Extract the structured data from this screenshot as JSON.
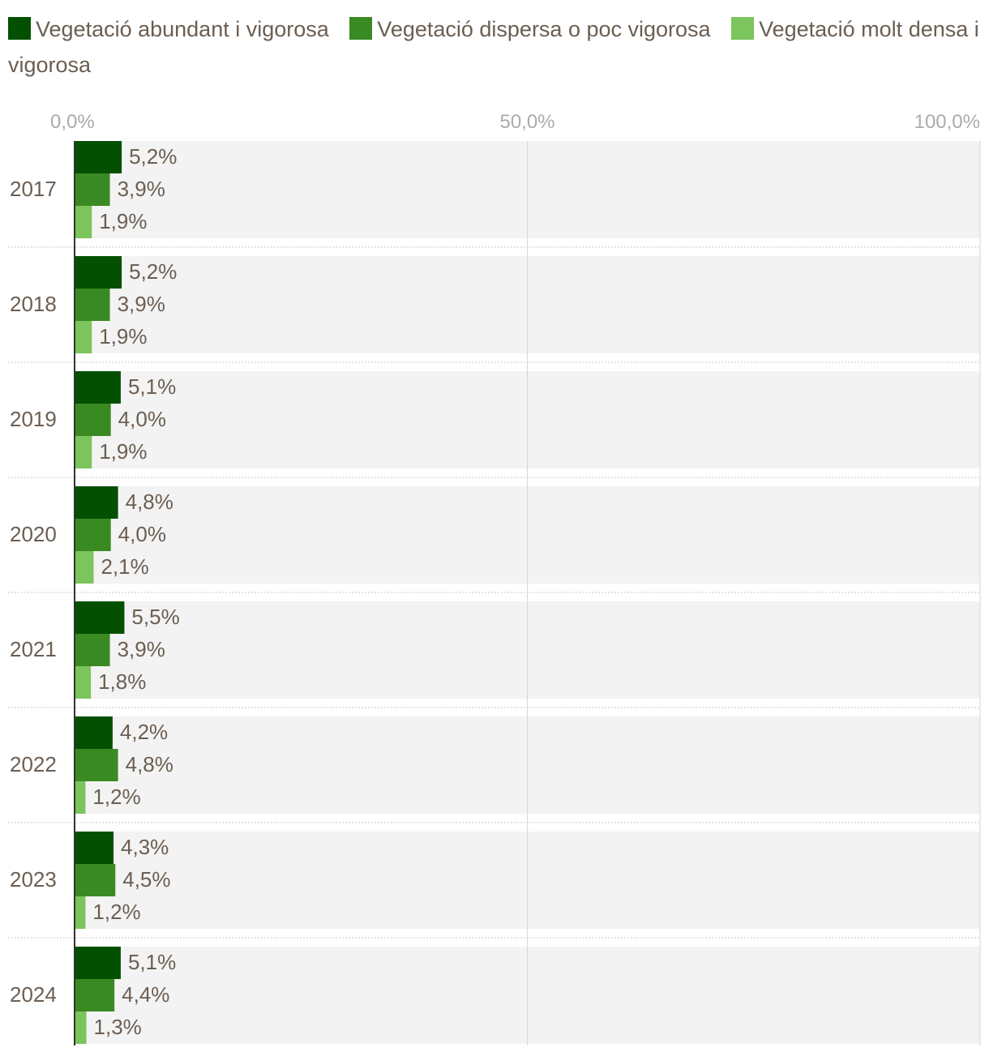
{
  "chart_data": {
    "type": "bar",
    "orientation": "horizontal",
    "categories": [
      "2017",
      "2018",
      "2019",
      "2020",
      "2021",
      "2022",
      "2023",
      "2024"
    ],
    "series": [
      {
        "name": "Vegetació abundant i vigorosa",
        "color": "#025000",
        "values": [
          5.2,
          5.2,
          5.1,
          4.8,
          5.5,
          4.2,
          4.3,
          5.1
        ],
        "labels": [
          "5,2%",
          "5,2%",
          "5,1%",
          "4,8%",
          "5,5%",
          "4,2%",
          "4,3%",
          "5,1%"
        ]
      },
      {
        "name": "Vegetació dispersa o poc vigorosa",
        "color": "#3a8a23",
        "values": [
          3.9,
          3.9,
          4.0,
          4.0,
          3.9,
          4.8,
          4.5,
          4.4
        ],
        "labels": [
          "3,9%",
          "3,9%",
          "4,0%",
          "4,0%",
          "3,9%",
          "4,8%",
          "4,5%",
          "4,4%"
        ]
      },
      {
        "name": "Vegetació molt densa i vigorosa",
        "color": "#7cc45c",
        "values": [
          1.9,
          1.9,
          1.9,
          2.1,
          1.8,
          1.2,
          1.2,
          1.3
        ],
        "labels": [
          "1,9%",
          "1,9%",
          "1,9%",
          "2,1%",
          "1,8%",
          "1,2%",
          "1,2%",
          "1,3%"
        ]
      }
    ],
    "xlim": [
      0,
      100
    ],
    "x_ticks": [
      0,
      50,
      100
    ],
    "x_tick_labels": [
      "0,0%",
      "50,0%",
      "100,0%"
    ],
    "grid": true,
    "legend_position": "top"
  }
}
